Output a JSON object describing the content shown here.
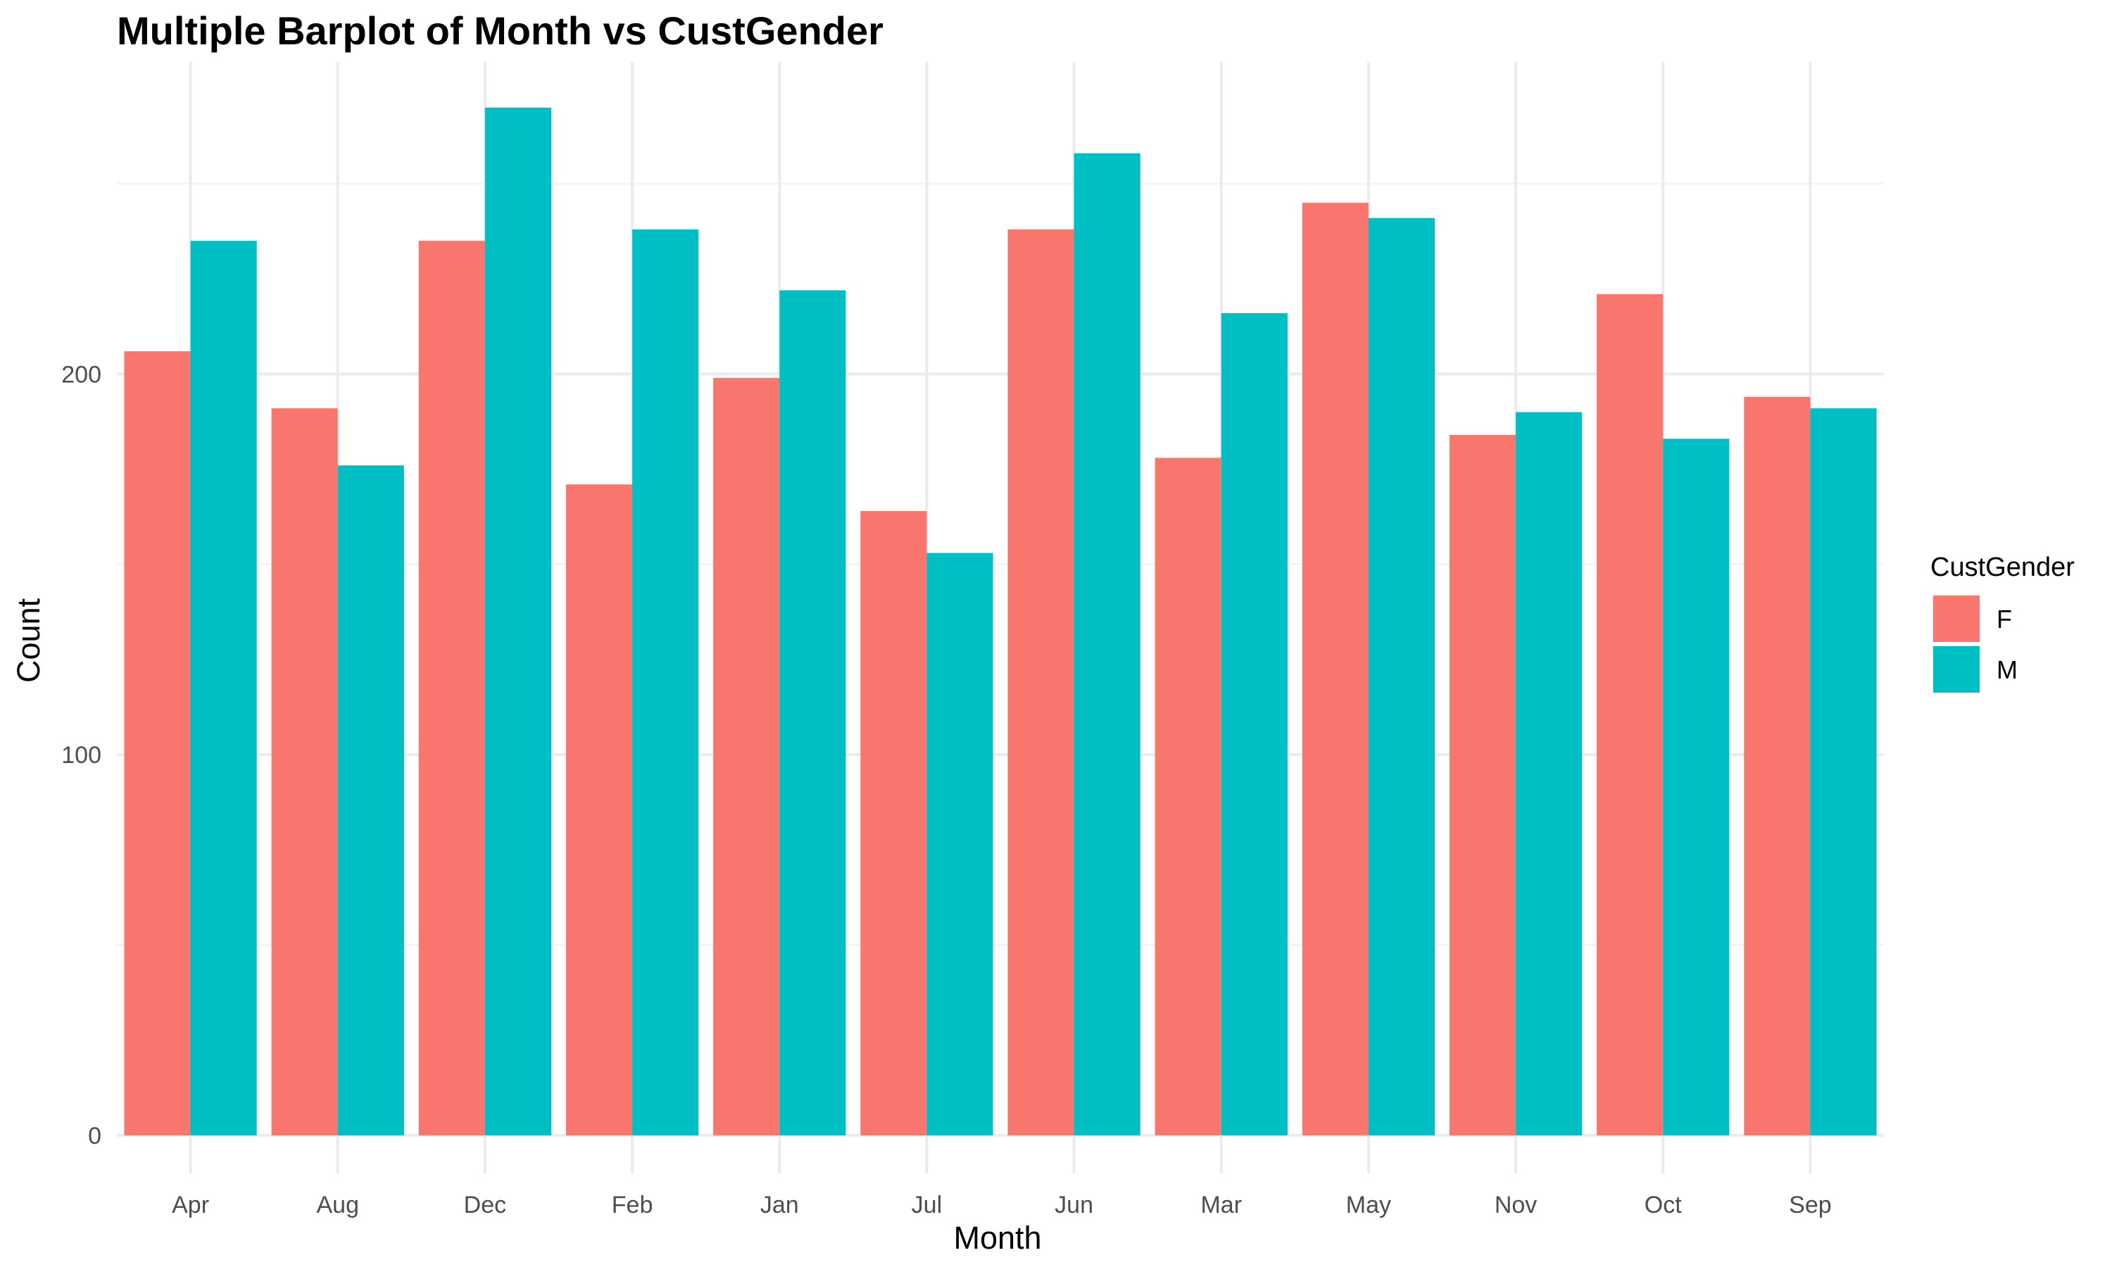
{
  "chart_data": {
    "type": "bar",
    "title": "Multiple Barplot of Month vs CustGender",
    "xlabel": "Month",
    "ylabel": "Count",
    "ylim": [
      -10,
      282
    ],
    "yticks": [
      0,
      100,
      200
    ],
    "grid": true,
    "legend": {
      "title": "CustGender",
      "placement": "right"
    },
    "categories": [
      "Apr",
      "Aug",
      "Dec",
      "Feb",
      "Jan",
      "Jul",
      "Jun",
      "Mar",
      "May",
      "Nov",
      "Oct",
      "Sep"
    ],
    "series": [
      {
        "name": "F",
        "color": "#F8766D",
        "values": [
          206,
          191,
          235,
          171,
          199,
          164,
          238,
          178,
          245,
          184,
          221,
          194
        ]
      },
      {
        "name": "M",
        "color": "#00BFC4",
        "values": [
          235,
          176,
          270,
          238,
          222,
          153,
          258,
          216,
          241,
          190,
          183,
          191
        ]
      }
    ]
  }
}
